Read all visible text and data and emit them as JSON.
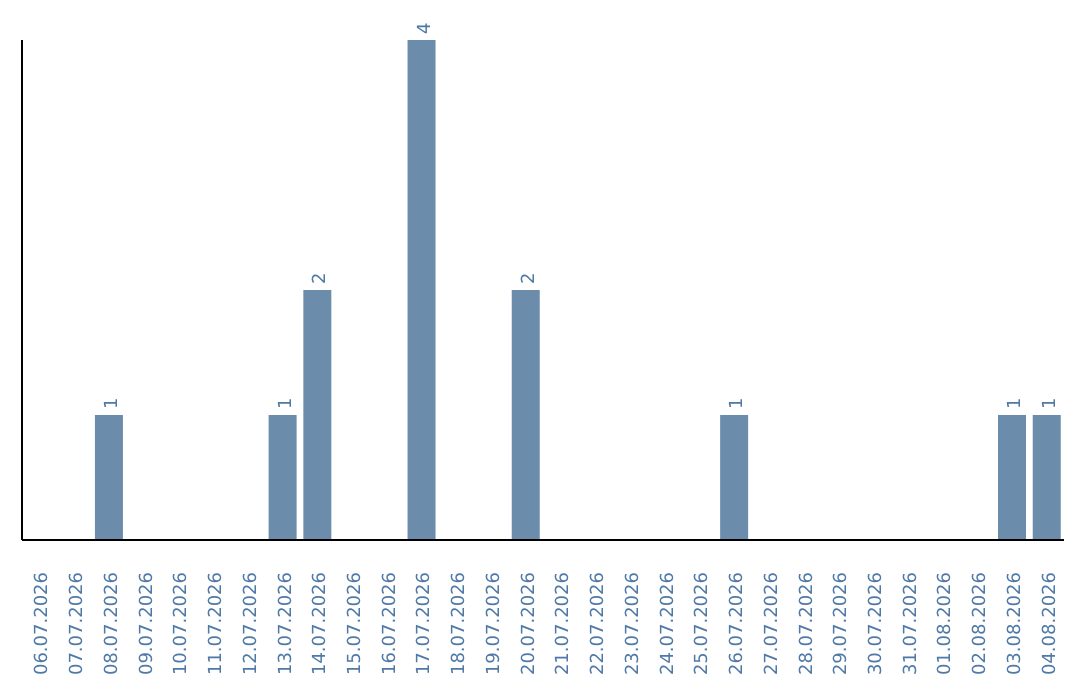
{
  "chart_data": {
    "type": "bar",
    "categories": [
      "06.07.2026",
      "07.07.2026",
      "08.07.2026",
      "09.07.2026",
      "10.07.2026",
      "11.07.2026",
      "12.07.2026",
      "13.07.2026",
      "14.07.2026",
      "15.07.2026",
      "16.07.2026",
      "17.07.2026",
      "18.07.2026",
      "19.07.2026",
      "20.07.2026",
      "21.07.2026",
      "22.07.2026",
      "23.07.2026",
      "24.07.2026",
      "25.07.2026",
      "26.07.2026",
      "27.07.2026",
      "28.07.2026",
      "29.07.2026",
      "30.07.2026",
      "31.07.2026",
      "01.08.2026",
      "02.08.2026",
      "03.08.2026",
      "04.08.2026"
    ],
    "values": [
      0,
      0,
      1,
      0,
      0,
      0,
      0,
      1,
      2,
      0,
      0,
      4,
      0,
      0,
      2,
      0,
      0,
      0,
      0,
      0,
      1,
      0,
      0,
      0,
      0,
      0,
      0,
      0,
      1,
      1
    ],
    "value_labels": [
      null,
      null,
      "1",
      null,
      null,
      null,
      null,
      "1",
      "2",
      null,
      null,
      "4",
      null,
      null,
      "2",
      null,
      null,
      null,
      null,
      null,
      "1",
      null,
      null,
      null,
      null,
      null,
      null,
      null,
      "1",
      "1"
    ],
    "color": "#6b8cab",
    "ylim": [
      0,
      4
    ],
    "tick_labels": "x",
    "grid": false,
    "legend": false
  }
}
